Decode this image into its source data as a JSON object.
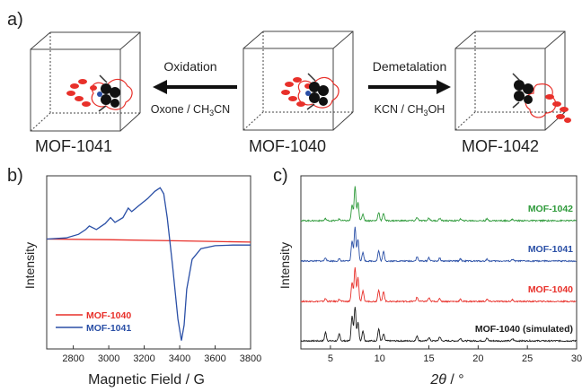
{
  "panel_a": {
    "panel_label": "a)",
    "left_arrow": {
      "top": "Oxidation",
      "bottom_pre": "Oxone / CH",
      "bottom_sub": "3",
      "bottom_post": "CN"
    },
    "right_arrow": {
      "top": "Demetalation",
      "bottom_pre": "KCN / CH",
      "bottom_sub": "3",
      "bottom_post": "OH"
    },
    "boxes": [
      "MOF-1041",
      "MOF-1040",
      "MOF-1042"
    ]
  },
  "colors": {
    "red": "#e8302a",
    "blue": "#2a4fa6",
    "green": "#2e9a3a",
    "black": "#1a1a1a",
    "grey": "#7a7a7a"
  },
  "chart_data": [
    {
      "panel_label": "b)",
      "type": "line",
      "xlabel": "Magnetic Field / G",
      "ylabel": "Intensity",
      "xlim": [
        2650,
        3800
      ],
      "xticks": [
        2800,
        3000,
        3200,
        3400,
        3600,
        3800
      ],
      "series": [
        {
          "name": "MOF-1040",
          "color": "#e8302a",
          "x": [
            2650,
            3000,
            3400,
            3800
          ],
          "y": [
            0.52,
            0.515,
            0.505,
            0.495
          ]
        },
        {
          "name": "MOF-1041",
          "color": "#2a4fa6",
          "x": [
            2650,
            2760,
            2830,
            2870,
            2890,
            2930,
            2980,
            3010,
            3035,
            3080,
            3110,
            3130,
            3170,
            3220,
            3260,
            3290,
            3310,
            3330,
            3360,
            3390,
            3410,
            3425,
            3440,
            3470,
            3520,
            3600,
            3700,
            3800
          ],
          "y": [
            0.52,
            0.53,
            0.56,
            0.6,
            0.63,
            0.6,
            0.65,
            0.7,
            0.66,
            0.7,
            0.78,
            0.75,
            0.8,
            0.86,
            0.92,
            0.95,
            0.9,
            0.7,
            0.3,
            -0.15,
            -0.33,
            -0.2,
            0.1,
            0.35,
            0.44,
            0.465,
            0.47,
            0.47
          ]
        }
      ]
    },
    {
      "panel_label": "c)",
      "type": "line",
      "xlabel_italic": "2θ",
      "xlabel_rest": " / °",
      "ylabel": "Intensity",
      "xlim": [
        2,
        30
      ],
      "xticks": [
        5,
        10,
        15,
        20,
        25,
        30
      ],
      "peaks": [
        4.5,
        5.9,
        7.2,
        7.5,
        7.8,
        8.3,
        9.9,
        10.4,
        13.8,
        15.0,
        16.1,
        18.2,
        20.9,
        23.5
      ],
      "series": [
        {
          "name": "MOF-1040 (simulated)",
          "color": "#1a1a1a",
          "heights": [
            0.25,
            0.2,
            0.75,
            1.0,
            0.55,
            0.3,
            0.35,
            0.2,
            0.15,
            0.1,
            0.12,
            0.08,
            0.08,
            0.06
          ]
        },
        {
          "name": "MOF-1040",
          "color": "#e8302a",
          "heights": [
            0.08,
            0.06,
            0.55,
            1.0,
            0.7,
            0.3,
            0.35,
            0.3,
            0.12,
            0.1,
            0.08,
            0.06,
            0.06,
            0.05
          ]
        },
        {
          "name": "MOF-1041",
          "color": "#2a4fa6",
          "heights": [
            0.1,
            0.06,
            0.6,
            1.0,
            0.65,
            0.25,
            0.3,
            0.28,
            0.12,
            0.1,
            0.08,
            0.06,
            0.06,
            0.05
          ]
        },
        {
          "name": "MOF-1042",
          "color": "#2e9a3a",
          "heights": [
            0.06,
            0.05,
            0.45,
            1.0,
            0.55,
            0.2,
            0.25,
            0.22,
            0.1,
            0.08,
            0.07,
            0.05,
            0.05,
            0.04
          ]
        }
      ]
    }
  ]
}
